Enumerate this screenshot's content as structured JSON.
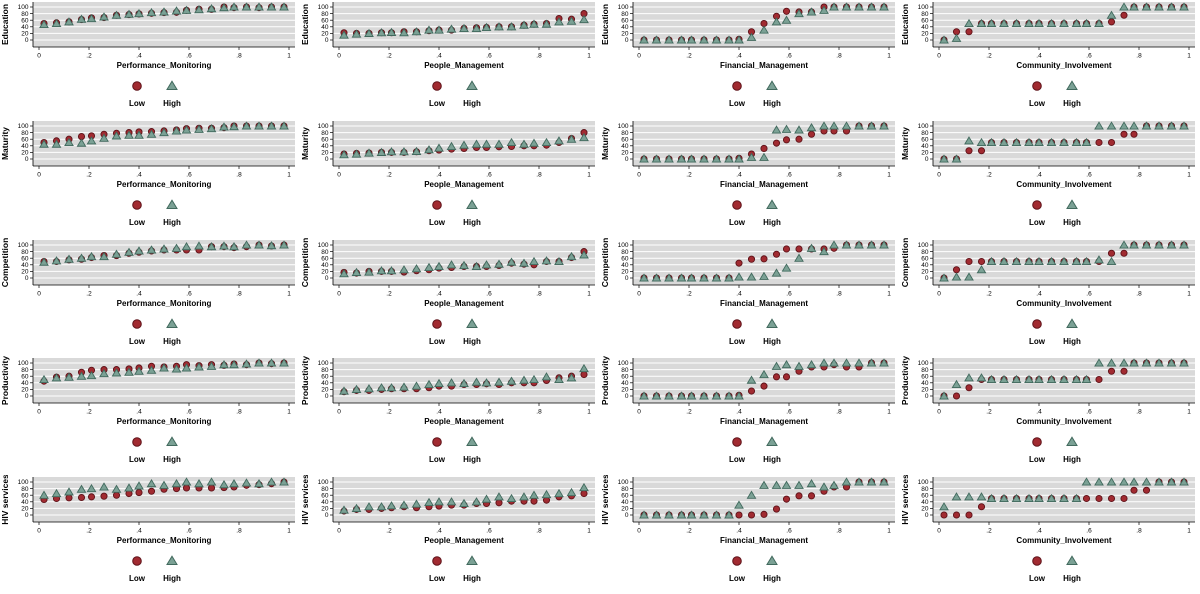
{
  "figure": {
    "background": "#ffffff",
    "plot_background": "#d9d9d9",
    "gridline_color": "#ffffff",
    "axis_color": "#000000",
    "text_color": "#000000"
  },
  "legend": {
    "low_label": "Low",
    "high_label": "High"
  },
  "colors": {
    "low_fill": "#a12b31",
    "low_edge": "#5e1219",
    "high_fill": "#7ba195",
    "high_edge": "#41695d"
  },
  "chart_data": {
    "type": "scatter",
    "rows": [
      "Education",
      "Maturity",
      "Competition",
      "Productivity",
      "HIV services"
    ],
    "cols": [
      "Performance_Monitoring",
      "People_Management",
      "Financial_Management",
      "Community_Involvement"
    ],
    "xlim": [
      0,
      1
    ],
    "ylim": [
      0,
      100
    ],
    "yticks": [
      0,
      20,
      40,
      60,
      80,
      100
    ],
    "xtick_labels": [
      "0",
      ".2",
      ".4",
      ".6",
      ".8",
      "1"
    ],
    "xtick_values": [
      0,
      0.2,
      0.4,
      0.6,
      0.8,
      1
    ],
    "legend_entries": [
      {
        "label": "Low",
        "marker": "circle"
      },
      {
        "label": "High",
        "marker": "triangle"
      }
    ],
    "x": [
      0.02,
      0.07,
      0.12,
      0.17,
      0.21,
      0.26,
      0.31,
      0.36,
      0.4,
      0.45,
      0.5,
      0.55,
      0.59,
      0.64,
      0.69,
      0.74,
      0.78,
      0.83,
      0.88,
      0.93,
      0.98
    ],
    "cells": [
      {
        "row": "Education",
        "col": "Performance_Monitoring",
        "low": [
          50,
          52,
          55,
          62,
          67,
          68,
          75,
          77,
          79,
          81,
          83,
          84,
          90,
          93,
          93,
          100,
          98,
          100,
          98,
          100,
          100
        ],
        "high": [
          47,
          50,
          55,
          63,
          65,
          70,
          75,
          78,
          80,
          83,
          85,
          88,
          90,
          92,
          95,
          98,
          100,
          100,
          100,
          100,
          100
        ]
      },
      {
        "row": "Education",
        "col": "People_Management",
        "low": [
          22,
          20,
          20,
          22,
          22,
          25,
          25,
          28,
          30,
          30,
          35,
          37,
          38,
          40,
          40,
          45,
          48,
          50,
          65,
          63,
          80
        ],
        "high": [
          15,
          18,
          20,
          22,
          23,
          22,
          25,
          30,
          30,
          33,
          35,
          35,
          38,
          40,
          40,
          45,
          48,
          48,
          55,
          57,
          62
        ]
      },
      {
        "row": "Education",
        "col": "Financial_Management",
        "low": [
          0,
          0,
          0,
          0,
          0,
          0,
          0,
          0,
          2,
          25,
          50,
          72,
          87,
          85,
          85,
          100,
          100,
          100,
          100,
          100,
          100
        ],
        "high": [
          0,
          0,
          0,
          0,
          0,
          0,
          0,
          0,
          0,
          8,
          30,
          55,
          60,
          80,
          85,
          90,
          100,
          100,
          100,
          100,
          100
        ]
      },
      {
        "row": "Education",
        "col": "Community_Involvement",
        "low": [
          0,
          25,
          25,
          50,
          50,
          50,
          50,
          50,
          50,
          50,
          50,
          50,
          50,
          50,
          55,
          75,
          100,
          100,
          100,
          100,
          100
        ],
        "high": [
          0,
          5,
          50,
          50,
          50,
          50,
          50,
          50,
          50,
          50,
          50,
          50,
          50,
          50,
          75,
          100,
          100,
          100,
          100,
          100,
          100
        ]
      },
      {
        "row": "Maturity",
        "col": "Performance_Monitoring",
        "low": [
          50,
          55,
          60,
          68,
          70,
          75,
          78,
          80,
          82,
          83,
          85,
          88,
          92,
          93,
          93,
          95,
          100,
          100,
          100,
          100,
          100
        ],
        "high": [
          45,
          45,
          50,
          48,
          55,
          63,
          70,
          72,
          72,
          75,
          80,
          85,
          88,
          90,
          92,
          97,
          98,
          100,
          100,
          100,
          100
        ]
      },
      {
        "row": "Maturity",
        "col": "People_Management",
        "low": [
          15,
          17,
          18,
          20,
          20,
          20,
          22,
          25,
          27,
          30,
          32,
          35,
          35,
          37,
          38,
          40,
          40,
          42,
          50,
          62,
          80
        ],
        "high": [
          13,
          15,
          18,
          20,
          22,
          22,
          23,
          28,
          33,
          38,
          42,
          45,
          45,
          45,
          50,
          45,
          48,
          50,
          55,
          60,
          65
        ]
      },
      {
        "row": "Maturity",
        "col": "Financial_Management",
        "low": [
          0,
          0,
          0,
          0,
          0,
          0,
          0,
          0,
          2,
          15,
          32,
          48,
          58,
          60,
          75,
          85,
          85,
          85,
          100,
          100,
          100
        ],
        "high": [
          0,
          0,
          0,
          0,
          0,
          0,
          0,
          0,
          0,
          5,
          5,
          88,
          90,
          88,
          95,
          100,
          100,
          100,
          100,
          100,
          100
        ]
      },
      {
        "row": "Maturity",
        "col": "Community_Involvement",
        "low": [
          0,
          0,
          25,
          25,
          50,
          50,
          50,
          50,
          50,
          50,
          50,
          50,
          50,
          50,
          50,
          75,
          75,
          100,
          100,
          100,
          100
        ],
        "high": [
          0,
          0,
          55,
          50,
          50,
          50,
          50,
          50,
          50,
          50,
          50,
          50,
          50,
          100,
          100,
          100,
          100,
          100,
          100,
          100,
          100
        ]
      },
      {
        "row": "Competition",
        "col": "Performance_Monitoring",
        "low": [
          50,
          50,
          55,
          57,
          62,
          68,
          68,
          75,
          78,
          82,
          85,
          85,
          85,
          85,
          95,
          95,
          92,
          95,
          100,
          97,
          100
        ],
        "high": [
          48,
          52,
          57,
          60,
          65,
          65,
          72,
          78,
          82,
          85,
          88,
          90,
          95,
          97,
          95,
          97,
          95,
          100,
          100,
          98,
          100
        ]
      },
      {
        "row": "Competition",
        "col": "People_Management",
        "low": [
          17,
          15,
          20,
          20,
          20,
          18,
          22,
          25,
          30,
          32,
          35,
          35,
          35,
          38,
          45,
          42,
          40,
          50,
          50,
          62,
          80
        ],
        "high": [
          13,
          17,
          18,
          22,
          22,
          25,
          28,
          32,
          35,
          40,
          38,
          35,
          40,
          42,
          48,
          45,
          50,
          52,
          50,
          65,
          70
        ]
      },
      {
        "row": "Competition",
        "col": "Financial_Management",
        "low": [
          0,
          0,
          0,
          0,
          0,
          0,
          0,
          0,
          45,
          57,
          58,
          72,
          88,
          88,
          88,
          88,
          90,
          100,
          100,
          100,
          100
        ],
        "high": [
          0,
          0,
          0,
          0,
          0,
          0,
          0,
          0,
          3,
          3,
          5,
          15,
          30,
          60,
          90,
          80,
          100,
          100,
          100,
          100,
          100
        ]
      },
      {
        "row": "Competition",
        "col": "Community_Involvement",
        "low": [
          0,
          25,
          50,
          50,
          50,
          50,
          50,
          50,
          50,
          50,
          50,
          50,
          50,
          50,
          75,
          75,
          100,
          100,
          100,
          100,
          100
        ],
        "high": [
          0,
          3,
          3,
          25,
          50,
          50,
          50,
          50,
          50,
          50,
          50,
          50,
          50,
          55,
          50,
          100,
          100,
          100,
          100,
          100,
          100
        ]
      },
      {
        "row": "Productivity",
        "col": "Performance_Monitoring",
        "low": [
          45,
          57,
          60,
          72,
          78,
          80,
          80,
          82,
          85,
          90,
          88,
          90,
          95,
          92,
          95,
          93,
          97,
          95,
          100,
          98,
          100
        ],
        "high": [
          50,
          55,
          57,
          60,
          62,
          68,
          70,
          72,
          75,
          78,
          85,
          82,
          85,
          88,
          90,
          95,
          95,
          97,
          100,
          100,
          100
        ]
      },
      {
        "row": "Productivity",
        "col": "People_Management",
        "low": [
          13,
          17,
          17,
          20,
          22,
          22,
          22,
          25,
          30,
          30,
          35,
          35,
          37,
          35,
          40,
          40,
          40,
          47,
          55,
          60,
          65
        ],
        "high": [
          15,
          20,
          22,
          25,
          25,
          27,
          30,
          35,
          38,
          40,
          38,
          42,
          40,
          42,
          45,
          48,
          50,
          58,
          50,
          55,
          83
        ]
      },
      {
        "row": "Productivity",
        "col": "Financial_Management",
        "low": [
          0,
          0,
          0,
          0,
          0,
          0,
          0,
          0,
          2,
          15,
          30,
          58,
          58,
          75,
          88,
          88,
          95,
          88,
          88,
          100,
          100
        ],
        "high": [
          0,
          0,
          0,
          0,
          0,
          0,
          0,
          0,
          0,
          48,
          65,
          90,
          95,
          90,
          95,
          100,
          100,
          100,
          100,
          100,
          100
        ]
      },
      {
        "row": "Productivity",
        "col": "Community_Involvement",
        "low": [
          0,
          0,
          25,
          50,
          50,
          50,
          50,
          50,
          50,
          50,
          50,
          50,
          50,
          50,
          75,
          75,
          100,
          100,
          100,
          100,
          100
        ],
        "high": [
          0,
          35,
          55,
          55,
          50,
          50,
          50,
          50,
          50,
          50,
          50,
          50,
          50,
          100,
          100,
          100,
          100,
          100,
          100,
          100,
          100
        ]
      },
      {
        "row": "HIV services",
        "col": "Performance_Monitoring",
        "low": [
          47,
          50,
          52,
          53,
          55,
          57,
          60,
          65,
          68,
          72,
          78,
          80,
          82,
          82,
          82,
          83,
          85,
          90,
          92,
          95,
          100
        ],
        "high": [
          60,
          65,
          70,
          78,
          80,
          85,
          78,
          82,
          88,
          95,
          90,
          95,
          100,
          95,
          100,
          92,
          95,
          97,
          95,
          100,
          100
        ]
      },
      {
        "row": "HIV services",
        "col": "People_Management",
        "low": [
          12,
          17,
          17,
          20,
          22,
          25,
          22,
          25,
          27,
          30,
          30,
          35,
          35,
          37,
          42,
          42,
          42,
          45,
          55,
          58,
          65
        ],
        "high": [
          15,
          20,
          25,
          25,
          28,
          30,
          33,
          38,
          40,
          40,
          35,
          40,
          48,
          55,
          50,
          55,
          60,
          62,
          65,
          68,
          83
        ]
      },
      {
        "row": "HIV services",
        "col": "Financial_Management",
        "low": [
          0,
          0,
          0,
          0,
          0,
          0,
          0,
          0,
          0,
          0,
          2,
          18,
          48,
          58,
          58,
          72,
          85,
          85,
          100,
          100,
          100
        ],
        "high": [
          0,
          0,
          0,
          0,
          0,
          0,
          0,
          0,
          30,
          60,
          90,
          90,
          90,
          90,
          95,
          85,
          90,
          100,
          100,
          100,
          100
        ]
      },
      {
        "row": "HIV services",
        "col": "Community_Involvement",
        "low": [
          0,
          0,
          0,
          25,
          50,
          50,
          50,
          50,
          50,
          50,
          50,
          50,
          50,
          50,
          50,
          50,
          75,
          75,
          100,
          100,
          100
        ],
        "high": [
          25,
          55,
          55,
          55,
          50,
          50,
          50,
          50,
          50,
          50,
          50,
          50,
          100,
          100,
          100,
          100,
          100,
          100,
          100,
          100,
          100
        ]
      }
    ]
  }
}
